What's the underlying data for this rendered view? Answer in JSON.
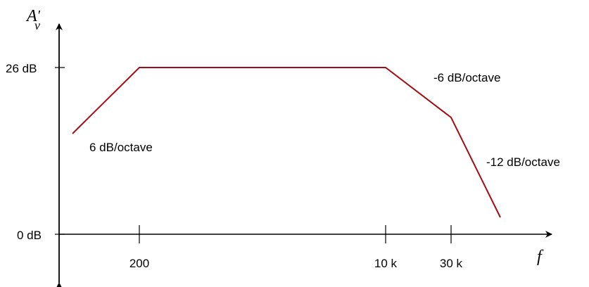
{
  "axes": {
    "y_label": "A",
    "y_label_sub": "v",
    "y_label_prime": "′",
    "x_label": "f",
    "y_ticks": [
      "26 dB",
      "0 dB"
    ],
    "x_ticks": [
      "200",
      "10 k",
      "30 k"
    ]
  },
  "annotations": {
    "rise_slope": "6 dB/octave",
    "fall_slope_1": "-6 dB/octave",
    "fall_slope_2": "-12 dB/octave"
  },
  "colors": {
    "response_curve": "#a50d12",
    "axes": "#000000"
  }
}
